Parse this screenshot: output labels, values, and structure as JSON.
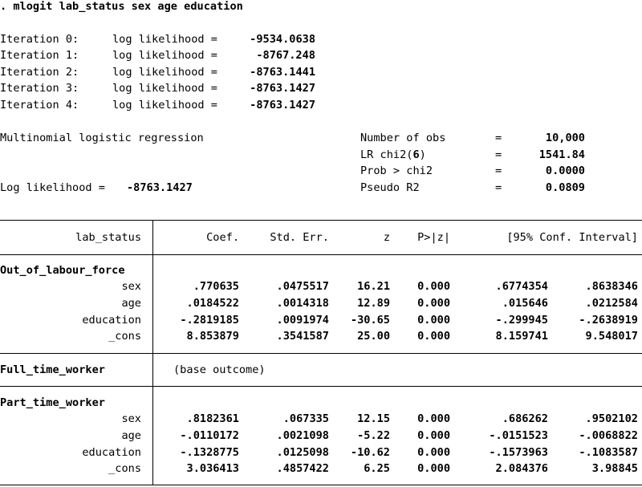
{
  "command": ". mlogit lab_status sex age education",
  "iterations": [
    {
      "label": "Iteration 0:",
      "text": "log likelihood =",
      "value": "-9534.0638"
    },
    {
      "label": "Iteration 1:",
      "text": "log likelihood =",
      "value": "-8767.248"
    },
    {
      "label": "Iteration 2:",
      "text": "log likelihood =",
      "value": "-8763.1441"
    },
    {
      "label": "Iteration 3:",
      "text": "log likelihood =",
      "value": "-8763.1427"
    },
    {
      "label": "Iteration 4:",
      "text": "log likelihood =",
      "value": "-8763.1427"
    }
  ],
  "model_title": "Multinomial logistic regression",
  "log_likelihood": {
    "label": "Log likelihood =",
    "value": "-8763.1427"
  },
  "stats": [
    {
      "label": "Number of obs",
      "eq": "=",
      "value": "10,000"
    },
    {
      "label": "LR chi2(",
      "label_num": "6",
      "label_end": ")",
      "eq": "=",
      "value": "1541.84"
    },
    {
      "label": "Prob > chi2",
      "eq": "=",
      "value": "0.0000"
    },
    {
      "label": "Pseudo R2",
      "eq": "=",
      "value": "0.0809"
    }
  ],
  "table": {
    "depvar": "lab_status",
    "columns": [
      "Coef.",
      "Std. Err.",
      "z",
      "P>|z|",
      "[95% Conf. Interval]"
    ],
    "groups": [
      {
        "name": "Out_of_labour_force",
        "rows": [
          {
            "var": "sex",
            "coef": ".770635",
            "se": ".0475517",
            "z": "16.21",
            "p": "0.000",
            "lo": ".6774354",
            "hi": ".8638346"
          },
          {
            "var": "age",
            "coef": ".0184522",
            "se": ".0014318",
            "z": "12.89",
            "p": "0.000",
            "lo": ".015646",
            "hi": ".0212584"
          },
          {
            "var": "education",
            "coef": "-.2819185",
            "se": ".0091974",
            "z": "-30.65",
            "p": "0.000",
            "lo": "-.299945",
            "hi": "-.2638919"
          },
          {
            "var": "_cons",
            "coef": "8.853879",
            "se": ".3541587",
            "z": "25.00",
            "p": "0.000",
            "lo": "8.159741",
            "hi": "9.548017"
          }
        ]
      },
      {
        "name": "Full_time_worker",
        "note": "(base outcome)"
      },
      {
        "name": "Part_time_worker",
        "rows": [
          {
            "var": "sex",
            "coef": ".8182361",
            "se": ".067335",
            "z": "12.15",
            "p": "0.000",
            "lo": ".686262",
            "hi": ".9502102"
          },
          {
            "var": "age",
            "coef": "-.0110172",
            "se": ".0021098",
            "z": "-5.22",
            "p": "0.000",
            "lo": "-.0151523",
            "hi": "-.0068822"
          },
          {
            "var": "education",
            "coef": "-.1328775",
            "se": ".0125098",
            "z": "-10.62",
            "p": "0.000",
            "lo": "-.1573963",
            "hi": "-.1083587"
          },
          {
            "var": "_cons",
            "coef": "3.036413",
            "se": ".4857422",
            "z": "6.25",
            "p": "0.000",
            "lo": "2.084376",
            "hi": "3.98845"
          }
        ]
      }
    ]
  }
}
